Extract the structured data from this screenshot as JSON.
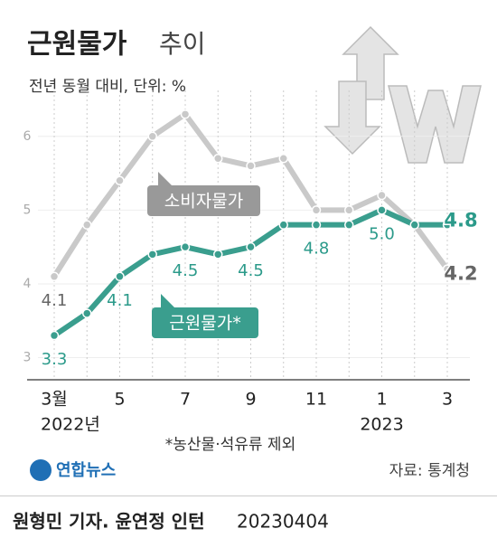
{
  "chart_data": {
    "type": "line",
    "title": [
      "근원물가",
      "추이"
    ],
    "subtitle": "전년 동월 대비, 단위: %",
    "categories": [
      "3월",
      null,
      "5",
      null,
      "7",
      null,
      "9",
      null,
      "11",
      null,
      "1",
      null,
      "3"
    ],
    "year_labels": [
      "2022년",
      "2023"
    ],
    "series": [
      {
        "name": "소비자물가",
        "color": "#c9c9c9",
        "label_color": "#666666",
        "values": [
          4.1,
          4.8,
          5.4,
          6.0,
          6.3,
          5.7,
          5.6,
          5.7,
          5.0,
          5.0,
          5.2,
          4.8,
          4.2
        ],
        "value_labels": [
          "4.1",
          null,
          null,
          null,
          null,
          null,
          null,
          null,
          null,
          null,
          null,
          null,
          "4.2"
        ]
      },
      {
        "name": "근원물가*",
        "color": "#3a9e8e",
        "label_color": "#2b9a8a",
        "values": [
          3.3,
          3.6,
          4.1,
          4.4,
          4.5,
          4.4,
          4.5,
          4.8,
          4.8,
          4.8,
          5.0,
          4.8,
          4.8
        ],
        "value_labels": [
          "3.3",
          null,
          "4.1",
          null,
          "4.5",
          null,
          "4.5",
          null,
          "4.8",
          null,
          "5.0",
          null,
          "4.8"
        ]
      }
    ],
    "ylim": [
      2.7,
      6.5
    ],
    "yticks": [
      3,
      4,
      5,
      6
    ],
    "grid": true,
    "footnote": "*농산물·석유류 제외",
    "source": "자료: 통계청",
    "logo": "연합뉴스"
  },
  "credit": "원형민 기자. 윤연정 인턴",
  "date": "20230404"
}
